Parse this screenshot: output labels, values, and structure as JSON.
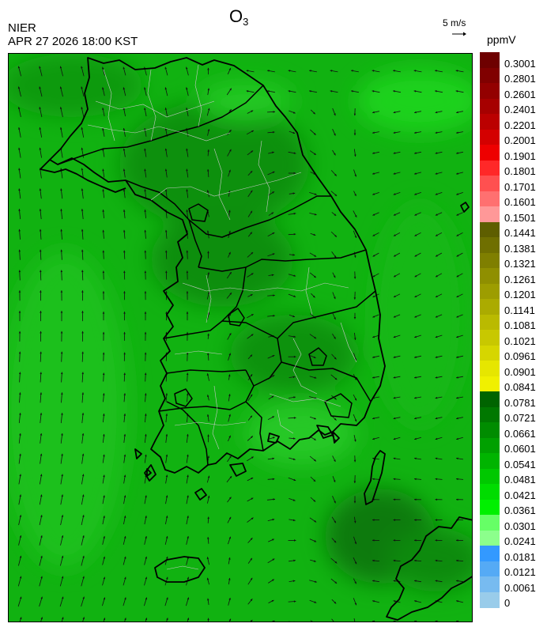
{
  "header": {
    "agency": "NIER",
    "timestamp": "APR 27 2026 18:00 KST",
    "title_main": "O",
    "title_sub": "3",
    "vector_ref_label": "5 m/s",
    "unit": "ppmV"
  },
  "colors": {
    "field_base": "#11b211",
    "field_dark": "#0a8c0a",
    "field_light": "#2ad42a",
    "field_bright": "#00e600",
    "coastline": "#000000",
    "boundary": "#c8c8c8",
    "vectors": "#111111"
  },
  "colorbar": {
    "labels": [
      "0.3001",
      "0.2801",
      "0.2601",
      "0.2401",
      "0.2201",
      "0.2001",
      "0.1901",
      "0.1801",
      "0.1701",
      "0.1601",
      "0.1501",
      "0.1441",
      "0.1381",
      "0.1321",
      "0.1261",
      "0.1201",
      "0.1141",
      "0.1081",
      "0.1021",
      "0.0961",
      "0.0901",
      "0.0841",
      "0.0781",
      "0.0721",
      "0.0661",
      "0.0601",
      "0.0541",
      "0.0481",
      "0.0421",
      "0.0361",
      "0.0301",
      "0.0241",
      "0.0181",
      "0.0121",
      "0.0061",
      "0"
    ],
    "colors": [
      "#6e0000",
      "#800000",
      "#930000",
      "#a60000",
      "#bb0000",
      "#d40000",
      "#ee0000",
      "#ff2828",
      "#ff5050",
      "#ff7070",
      "#ff9898",
      "#5e5e00",
      "#6f6f00",
      "#7f7f00",
      "#8f8f00",
      "#9d9d00",
      "#abab00",
      "#baba00",
      "#c8c800",
      "#d6d600",
      "#e6e600",
      "#f0f000",
      "#006400",
      "#007800",
      "#008c00",
      "#00a000",
      "#00b400",
      "#00c800",
      "#00dc00",
      "#00f000",
      "#66ff66",
      "#8cff8c",
      "#3399ff",
      "#55aaf5",
      "#77bbf0",
      "#99ccea"
    ]
  },
  "layers": [
    {
      "name": "O3 concentration field"
    },
    {
      "name": "Wind vectors"
    },
    {
      "name": "Coastlines and province boundaries"
    }
  ]
}
